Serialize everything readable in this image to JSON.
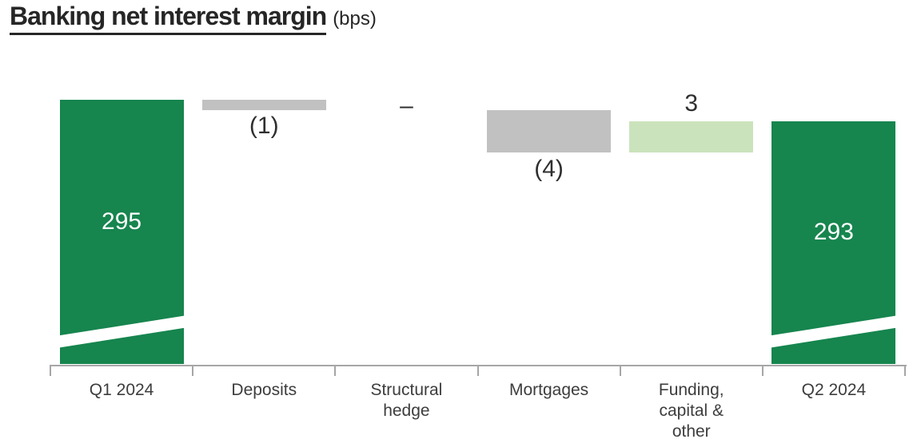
{
  "title": {
    "main": "Banking net interest margin",
    "unit": "(bps)"
  },
  "colors": {
    "total_bar": "#16854e",
    "negative_bar": "#c1c1c1",
    "positive_bar": "#cbe3bc",
    "value_text_on_bar": "#ffffff",
    "delta_text": "#2f2f2f",
    "category_text": "#3d3d3d",
    "title_text": "#262626",
    "axis": "#a6a6a6"
  },
  "chart_data": {
    "type": "waterfall",
    "title": "Banking net interest margin",
    "unit": "bps",
    "categories": [
      "Q1 2024",
      "Deposits",
      "Structural hedge",
      "Mortgages",
      "Funding, capital & other",
      "Q2 2024"
    ],
    "steps": [
      {
        "label": "Q1 2024",
        "kind": "total",
        "value": 295,
        "display": "295"
      },
      {
        "label": "Deposits",
        "kind": "delta",
        "value": -1,
        "display": "(1)"
      },
      {
        "label": "Structural hedge",
        "kind": "delta",
        "value": 0,
        "display": "–"
      },
      {
        "label": "Mortgages",
        "kind": "delta",
        "value": -4,
        "display": "(4)"
      },
      {
        "label": "Funding, capital & other",
        "kind": "delta",
        "value": 3,
        "display": "3"
      },
      {
        "label": "Q2 2024",
        "kind": "total",
        "value": 293,
        "display": "293"
      }
    ],
    "axis_break_slash_on_total_bars": true,
    "legend": "none",
    "grid": false
  }
}
